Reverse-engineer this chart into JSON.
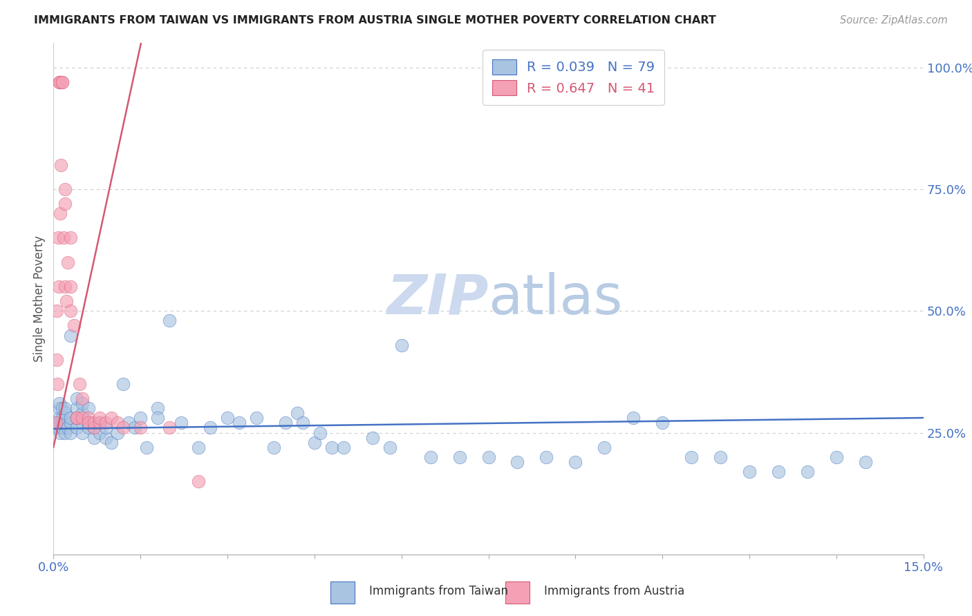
{
  "title": "IMMIGRANTS FROM TAIWAN VS IMMIGRANTS FROM AUSTRIA SINGLE MOTHER POVERTY CORRELATION CHART",
  "source": "Source: ZipAtlas.com",
  "ylabel": "Single Mother Poverty",
  "taiwan_R": 0.039,
  "taiwan_N": 79,
  "austria_R": 0.647,
  "austria_N": 41,
  "taiwan_color": "#a8c4e0",
  "austria_color": "#f4a0b5",
  "taiwan_line_color": "#4472c4",
  "austria_line_color": "#d45872",
  "background_color": "#ffffff",
  "watermark_color": "#ccd9ee",
  "taiwan_scatter_x": [
    0.0005,
    0.0008,
    0.001,
    0.001,
    0.001,
    0.0012,
    0.0012,
    0.0015,
    0.0015,
    0.0015,
    0.002,
    0.002,
    0.002,
    0.002,
    0.0025,
    0.003,
    0.003,
    0.003,
    0.003,
    0.004,
    0.004,
    0.004,
    0.004,
    0.005,
    0.005,
    0.005,
    0.005,
    0.006,
    0.006,
    0.006,
    0.007,
    0.007,
    0.008,
    0.008,
    0.009,
    0.009,
    0.01,
    0.011,
    0.012,
    0.013,
    0.014,
    0.015,
    0.016,
    0.018,
    0.018,
    0.02,
    0.022,
    0.025,
    0.027,
    0.03,
    0.032,
    0.035,
    0.038,
    0.04,
    0.042,
    0.043,
    0.045,
    0.046,
    0.048,
    0.05,
    0.055,
    0.058,
    0.06,
    0.065,
    0.07,
    0.075,
    0.08,
    0.085,
    0.09,
    0.095,
    0.1,
    0.105,
    0.11,
    0.115,
    0.12,
    0.125,
    0.13,
    0.135,
    0.14
  ],
  "taiwan_scatter_y": [
    0.27,
    0.26,
    0.28,
    0.3,
    0.31,
    0.27,
    0.25,
    0.26,
    0.28,
    0.3,
    0.25,
    0.27,
    0.29,
    0.3,
    0.26,
    0.25,
    0.27,
    0.28,
    0.45,
    0.26,
    0.28,
    0.3,
    0.32,
    0.25,
    0.27,
    0.29,
    0.31,
    0.26,
    0.27,
    0.3,
    0.24,
    0.26,
    0.25,
    0.27,
    0.24,
    0.26,
    0.23,
    0.25,
    0.35,
    0.27,
    0.26,
    0.28,
    0.22,
    0.3,
    0.28,
    0.48,
    0.27,
    0.22,
    0.26,
    0.28,
    0.27,
    0.28,
    0.22,
    0.27,
    0.29,
    0.27,
    0.23,
    0.25,
    0.22,
    0.22,
    0.24,
    0.22,
    0.43,
    0.2,
    0.2,
    0.2,
    0.19,
    0.2,
    0.19,
    0.22,
    0.28,
    0.27,
    0.2,
    0.2,
    0.17,
    0.17,
    0.17,
    0.2,
    0.19
  ],
  "austria_scatter_x": [
    0.0004,
    0.0005,
    0.0006,
    0.0007,
    0.0008,
    0.0009,
    0.001,
    0.001,
    0.001,
    0.0012,
    0.0013,
    0.0015,
    0.0015,
    0.0017,
    0.002,
    0.002,
    0.002,
    0.0022,
    0.0025,
    0.003,
    0.003,
    0.003,
    0.0035,
    0.004,
    0.004,
    0.0045,
    0.005,
    0.005,
    0.006,
    0.006,
    0.007,
    0.007,
    0.008,
    0.008,
    0.009,
    0.01,
    0.011,
    0.012,
    0.015,
    0.02,
    0.025
  ],
  "austria_scatter_y": [
    0.27,
    0.4,
    0.5,
    0.35,
    0.65,
    0.55,
    0.97,
    0.97,
    0.97,
    0.7,
    0.8,
    0.97,
    0.97,
    0.65,
    0.55,
    0.72,
    0.75,
    0.52,
    0.6,
    0.55,
    0.65,
    0.5,
    0.47,
    0.28,
    0.28,
    0.35,
    0.32,
    0.28,
    0.28,
    0.27,
    0.26,
    0.27,
    0.27,
    0.28,
    0.27,
    0.28,
    0.27,
    0.26,
    0.26,
    0.26,
    0.15
  ],
  "xlim": [
    0,
    0.15
  ],
  "ylim": [
    0,
    1.05
  ],
  "xticks": [
    0.0,
    0.015,
    0.03,
    0.045,
    0.06,
    0.075,
    0.09,
    0.105,
    0.12,
    0.135,
    0.15
  ],
  "yticks_right": [
    0.0,
    0.25,
    0.5,
    0.75,
    1.0
  ],
  "ytick_labels_right": [
    "",
    "25.0%",
    "50.0%",
    "75.0%",
    "100.0%"
  ]
}
